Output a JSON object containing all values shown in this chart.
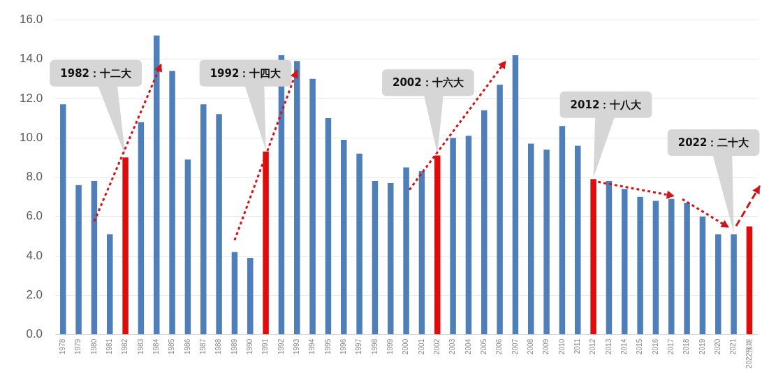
{
  "chart_data": {
    "type": "bar",
    "categories": [
      "1978",
      "1979",
      "1980",
      "1981",
      "1982",
      "1983",
      "1984",
      "1985",
      "1986",
      "1987",
      "1988",
      "1989",
      "1990",
      "1991",
      "1992",
      "1993",
      "1994",
      "1995",
      "1996",
      "1997",
      "1998",
      "1999",
      "2000",
      "2001",
      "2002",
      "2003",
      "2004",
      "2005",
      "2006",
      "2007",
      "2008",
      "2009",
      "2010",
      "2011",
      "2012",
      "2013",
      "2014",
      "2015",
      "2016",
      "2017",
      "2018",
      "2019",
      "2020",
      "2021",
      "2022预期"
    ],
    "values": [
      11.7,
      7.6,
      7.8,
      5.1,
      9.0,
      10.8,
      15.2,
      13.4,
      8.9,
      11.7,
      11.2,
      4.2,
      3.9,
      9.3,
      14.2,
      13.9,
      13.0,
      11.0,
      9.9,
      9.2,
      7.8,
      7.7,
      8.5,
      8.3,
      9.1,
      10.0,
      10.1,
      11.4,
      12.7,
      14.2,
      9.7,
      9.4,
      10.6,
      9.6,
      7.9,
      7.8,
      7.4,
      7.0,
      6.8,
      6.9,
      6.7,
      6.0,
      5.1,
      5.1,
      5.5
    ],
    "colors": [
      "#4f7fb8",
      "#4f7fb8",
      "#4f7fb8",
      "#4f7fb8",
      "#e00c0c",
      "#4f7fb8",
      "#4f7fb8",
      "#4f7fb8",
      "#4f7fb8",
      "#4f7fb8",
      "#4f7fb8",
      "#4f7fb8",
      "#4f7fb8",
      "#e00c0c",
      "#4f7fb8",
      "#4f7fb8",
      "#4f7fb8",
      "#4f7fb8",
      "#4f7fb8",
      "#4f7fb8",
      "#4f7fb8",
      "#4f7fb8",
      "#4f7fb8",
      "#4f7fb8",
      "#e00c0c",
      "#4f7fb8",
      "#4f7fb8",
      "#4f7fb8",
      "#4f7fb8",
      "#4f7fb8",
      "#4f7fb8",
      "#4f7fb8",
      "#4f7fb8",
      "#4f7fb8",
      "#e00c0c",
      "#4f7fb8",
      "#4f7fb8",
      "#4f7fb8",
      "#4f7fb8",
      "#4f7fb8",
      "#4f7fb8",
      "#4f7fb8",
      "#4f7fb8",
      "#4f7fb8",
      "#e00c0c"
    ],
    "ylim": [
      0,
      16
    ],
    "yticks": [
      {
        "value": 0,
        "label": "0.0"
      },
      {
        "value": 2,
        "label": "2.0"
      },
      {
        "value": 4,
        "label": "4.0"
      },
      {
        "value": 6,
        "label": "6.0"
      },
      {
        "value": 8,
        "label": "8.0"
      },
      {
        "value": 10,
        "label": "10.0"
      },
      {
        "value": 12,
        "label": "12.0"
      },
      {
        "value": 14,
        "label": "14.0"
      },
      {
        "value": 16,
        "label": "16.0"
      }
    ],
    "grid": "y",
    "legend": false,
    "annotations": [
      {
        "text": "1982：十二大",
        "x": "1982",
        "y": 9.0
      },
      {
        "text": "1992：十四大",
        "x": "1991",
        "y": 9.3
      },
      {
        "text": "2002：十六大",
        "x": "2002",
        "y": 9.1
      },
      {
        "text": "2012：十八大",
        "x": "2012",
        "y": 7.9
      },
      {
        "text": "2022：二十大",
        "x": "2021",
        "y": 5.1
      }
    ]
  }
}
